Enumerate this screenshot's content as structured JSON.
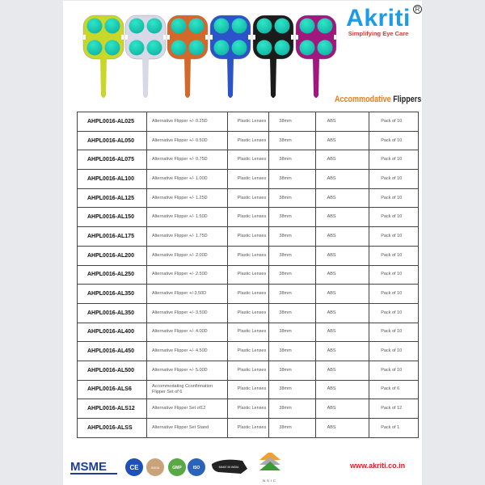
{
  "brand": {
    "name": "Akriti",
    "tagline": "Simplifying Eye Care",
    "registered": "R"
  },
  "heading": {
    "part1": "Accommodative",
    "part2": "Flippers"
  },
  "flipper_colors": [
    "#c9d62a",
    "#d8d8e6",
    "#d2692a",
    "#2a54c8",
    "#1b1b1b",
    "#a0187e"
  ],
  "lens_color": "#14b8a6",
  "products": [
    {
      "code": "AHPL0016-AL025",
      "description": "Alternative Flipper +/- 0.25D",
      "lens": "Plastic Lenses",
      "size": "38mm",
      "material": "ABS",
      "pack": "Pack  of 10"
    },
    {
      "code": "AHPL0016-AL050",
      "description": "Alternative Flipper +/- 0.50D",
      "lens": "Plastic Lenses",
      "size": "38mm",
      "material": "ABS",
      "pack": "Pack  of 10"
    },
    {
      "code": "AHPL0016-AL075",
      "description": "Alternative Flipper +/- 0.75D",
      "lens": "Plastic Lenses",
      "size": "38mm",
      "material": "ABS",
      "pack": "Pack  of 10"
    },
    {
      "code": "AHPL0016-AL100",
      "description": "Alternative Flipper +/- 1.00D",
      "lens": "Plastic Lenses",
      "size": "38mm",
      "material": "ABS",
      "pack": "Pack  of 10"
    },
    {
      "code": "AHPL0016-AL125",
      "description": "Alternative Flipper +/- 1.25D",
      "lens": "Plastic Lenses",
      "size": "38mm",
      "material": "ABS",
      "pack": "Pack  of 10"
    },
    {
      "code": "AHPL0016-AL150",
      "description": "Alternative Flipper +/- 1.50D",
      "lens": "Plastic Lenses",
      "size": "38mm",
      "material": "ABS",
      "pack": "Pack  of 10"
    },
    {
      "code": "AHPL0016-AL175",
      "description": "Alternative Flipper +/- 1.75D",
      "lens": "Plastic Lenses",
      "size": "38mm",
      "material": "ABS",
      "pack": "Pack  of 10"
    },
    {
      "code": "AHPL0016-AL200",
      "description": "Alternative Flipper +/- 2.00D",
      "lens": "Plastic Lenses",
      "size": "38mm",
      "material": "ABS",
      "pack": "Pack  of 10"
    },
    {
      "code": "AHPL0016-AL250",
      "description": "Alternative Flipper +/- 2.50D",
      "lens": "Plastic Lenses",
      "size": "38mm",
      "material": "ABS",
      "pack": "Pack  of 10"
    },
    {
      "code": "AHPL0016-AL350",
      "description": "Alternative Flipper +/-3.50D",
      "lens": "Plastic Lenses",
      "size": "38mm",
      "material": "ABS",
      "pack": "Pack  of 10"
    },
    {
      "code": "AHPL0016-AL350",
      "description": "Alternative Flipper +/- 3.50D",
      "lens": "Plastic Lenses",
      "size": "38mm",
      "material": "ABS",
      "pack": "Pack  of 10"
    },
    {
      "code": "AHPL0016-AL400",
      "description": "Alternative Flipper +/- 4.00D",
      "lens": "Plastic Lenses",
      "size": "38mm",
      "material": "ABS",
      "pack": "Pack  of 10"
    },
    {
      "code": "AHPL0016-AL450",
      "description": "Alternative Flipper +/- 4.50D",
      "lens": "Plastic Lenses",
      "size": "38mm",
      "material": "ABS",
      "pack": "Pack  of 10"
    },
    {
      "code": "AHPL0016-AL500",
      "description": "Alternative Flipper +/- 5.00D",
      "lens": "Plastic Lenses",
      "size": "38mm",
      "material": "ABS",
      "pack": "Pack  of 10"
    },
    {
      "code": "AHPL0016-ALS6",
      "description": "Accommodating  Cconfirmation Flipper  Set of 6",
      "lens": "Plastic Lenses",
      "size": "38mm",
      "material": "ABS",
      "pack": "Pack  of 6"
    },
    {
      "code": "AHPL0016-ALS12",
      "description": "Alternative Flipper  Set of12",
      "lens": "Plastic Lenses",
      "size": "38mm",
      "material": "ABS",
      "pack": "Pack  of 12"
    },
    {
      "code": "AHPL0016-ALSS",
      "description": "Alternative Flipper  Set Stand",
      "lens": "Plastic Lenses",
      "size": "38mm",
      "material": "ABS",
      "pack": "Pack  of 1"
    }
  ],
  "footer": {
    "logos": [
      "MSME",
      "CE",
      "INDIA",
      "GMP",
      "ISO",
      "MAKE IN INDIA",
      "NSIC"
    ],
    "website": "www.akriti.co.in"
  }
}
